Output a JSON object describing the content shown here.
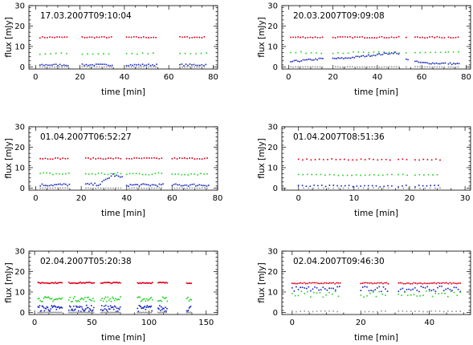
{
  "chart_data": [
    {
      "type": "scatter",
      "title": "17.03.2007T09:10:04",
      "xlabel": "time [min]",
      "ylabel": "flux [mJy]",
      "xlim": [
        -3,
        82
      ],
      "ylim": [
        -1,
        30
      ],
      "xticks": [
        0,
        20,
        40,
        60,
        80
      ],
      "yticks": [
        0,
        10,
        20,
        30
      ],
      "segments": [
        [
          2,
          15
        ],
        [
          21,
          35
        ],
        [
          41,
          55
        ],
        [
          65,
          77
        ]
      ],
      "series": [
        {
          "color": "#e0001b",
          "base": 14.5,
          "noise": 0.3,
          "step": 1.1
        },
        {
          "color": "#2fd12f",
          "base": 6.5,
          "noise": 0.4,
          "step": 2.4
        },
        {
          "color": "#1f2fbf",
          "base": 1.0,
          "noise": 0.4,
          "step": 0.9
        },
        {
          "color": "#9a9a9a",
          "base": 0.0,
          "noise": 0.1,
          "step": 1.1
        }
      ]
    },
    {
      "type": "scatter",
      "title": "20.03.2007T09:09:08",
      "xlabel": "time [min]",
      "ylabel": "flux [mJy]",
      "xlim": [
        -3,
        82
      ],
      "ylim": [
        -1,
        30
      ],
      "xticks": [
        0,
        20,
        40,
        60,
        80
      ],
      "yticks": [
        0,
        10,
        20,
        30
      ],
      "segments": [
        [
          1,
          16
        ],
        [
          20,
          50
        ],
        [
          53,
          54
        ],
        [
          57,
          71
        ],
        [
          72,
          77
        ]
      ],
      "series": [
        {
          "color": "#e0001b",
          "base": 14.5,
          "noise": 0.3,
          "step": 1.1
        },
        {
          "color": "#2fd12f",
          "base": 7.0,
          "noise": 0.4,
          "step": 2.3
        },
        {
          "color": "#1f2fbf",
          "base": 2.5,
          "noise": 0.4,
          "step": 0.8,
          "ramp": [
            [
              0,
              2.5
            ],
            [
              15,
              4.0
            ],
            [
              25,
              4.2
            ],
            [
              48,
              7.0
            ],
            [
              55,
              3.0
            ],
            [
              60,
              2.0
            ],
            [
              77,
              1.5
            ]
          ]
        },
        {
          "color": "#9a9a9a",
          "base": 0.0,
          "noise": 0.1,
          "step": 1.1
        }
      ]
    },
    {
      "type": "scatter",
      "title": "01.04.2007T06:52:27",
      "xlabel": "time [min]",
      "ylabel": "flux [mJy]",
      "xlim": [
        -3,
        80
      ],
      "ylim": [
        -1,
        30
      ],
      "xticks": [
        0,
        20,
        40,
        60,
        80
      ],
      "yticks": [
        0,
        10,
        20,
        30
      ],
      "segments": [
        [
          2,
          15
        ],
        [
          22,
          38
        ],
        [
          40,
          56
        ],
        [
          60,
          76
        ]
      ],
      "series": [
        {
          "color": "#e0001b",
          "base": 14.5,
          "noise": 0.3,
          "step": 1.1
        },
        {
          "color": "#2fd12f",
          "base": 7.0,
          "noise": 0.6,
          "step": 1.4
        },
        {
          "color": "#1f2fbf",
          "base": 1.5,
          "noise": 0.6,
          "step": 0.8,
          "ramp": [
            [
              0,
              1.5
            ],
            [
              28,
              1.8
            ],
            [
              34,
              6.5
            ],
            [
              38,
              5.0
            ],
            [
              40,
              1.5
            ],
            [
              76,
              1.5
            ]
          ]
        },
        {
          "color": "#9a9a9a",
          "base": 0.0,
          "noise": 0.1,
          "step": 1.1
        }
      ]
    },
    {
      "type": "scatter",
      "title": "01.04.2007T08:51:36",
      "xlabel": "time [min]",
      "ylabel": "flux [mJy]",
      "xlim": [
        -3,
        31
      ],
      "ylim": [
        -1,
        30
      ],
      "xticks": [
        0,
        10,
        20,
        30
      ],
      "yticks": [
        0,
        10,
        20,
        30
      ],
      "segments": [
        [
          0,
          17
        ],
        [
          18,
          20
        ],
        [
          21,
          25.5
        ]
      ],
      "series": [
        {
          "color": "#e0001b",
          "base": 14.0,
          "noise": 0.3,
          "step": 0.75
        },
        {
          "color": "#2fd12f",
          "base": 6.5,
          "noise": 0.3,
          "step": 0.8
        },
        {
          "color": "#1f2fbf",
          "base": 1.0,
          "noise": 0.4,
          "step": 0.7
        },
        {
          "color": "#9a9a9a",
          "base": 0.0,
          "noise": 0.1,
          "step": 0.9
        }
      ]
    },
    {
      "type": "scatter",
      "title": "02.04.2007T05:20:38",
      "xlabel": "time [min]",
      "ylabel": "flux [mJy]",
      "xlim": [
        -5,
        160
      ],
      "ylim": [
        -1,
        30
      ],
      "xticks": [
        0,
        50,
        100,
        150
      ],
      "yticks": [
        0,
        10,
        20,
        30
      ],
      "segments": [
        [
          3,
          24
        ],
        [
          30,
          52
        ],
        [
          58,
          75
        ],
        [
          90,
          103
        ],
        [
          108,
          116
        ],
        [
          133,
          137
        ]
      ],
      "series": [
        {
          "color": "#e0001b",
          "base": 14.5,
          "noise": 0.3,
          "step": 1.0
        },
        {
          "color": "#2fd12f",
          "base": 6.5,
          "noise": 1.2,
          "step": 1.0
        },
        {
          "color": "#1f2fbf",
          "base": 2.0,
          "noise": 1.5,
          "step": 0.7
        },
        {
          "color": "#9a9a9a",
          "base": 0.0,
          "noise": 0.1,
          "step": 1.2
        }
      ]
    },
    {
      "type": "scatter",
      "title": "02.04.2007T09:46:30",
      "xlabel": "time [min]",
      "ylabel": "flux [mJy]",
      "xlim": [
        -3,
        52
      ],
      "ylim": [
        -1,
        30
      ],
      "xticks": [
        0,
        20,
        40
      ],
      "yticks": [
        0,
        10,
        20,
        30
      ],
      "segments": [
        [
          0,
          14
        ],
        [
          20,
          28
        ],
        [
          31,
          49
        ]
      ],
      "series": [
        {
          "color": "#e0001b",
          "base": 14.3,
          "noise": 0.3,
          "step": 0.5
        },
        {
          "color": "#1f2fbf",
          "base": 11.5,
          "noise": 1.3,
          "step": 0.6
        },
        {
          "color": "#2fd12f",
          "base": 9.0,
          "noise": 1.5,
          "step": 0.9
        },
        {
          "color": "#9a9a9a",
          "base": 0.5,
          "noise": 0.2,
          "step": 1.2
        }
      ]
    }
  ]
}
